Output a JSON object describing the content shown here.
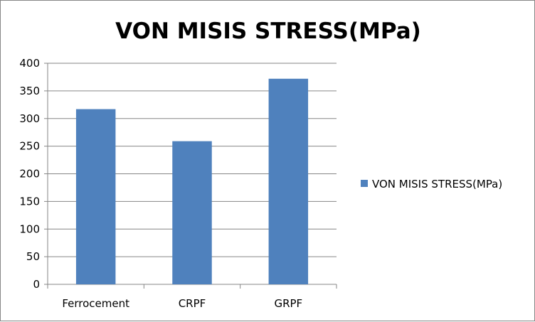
{
  "chart_data": {
    "type": "bar",
    "title": "VON MISIS STRESS(MPa)",
    "categories": [
      "Ferrocement",
      "CRPF",
      "GRPF"
    ],
    "series": [
      {
        "name": "VON MISIS STRESS(MPa)",
        "values": [
          317,
          259,
          372
        ],
        "color": "#4F81BD"
      }
    ],
    "ylim": [
      0,
      400
    ],
    "yticks": [
      0,
      50,
      100,
      150,
      200,
      250,
      300,
      350,
      400
    ],
    "grid": true,
    "legend": "right"
  }
}
